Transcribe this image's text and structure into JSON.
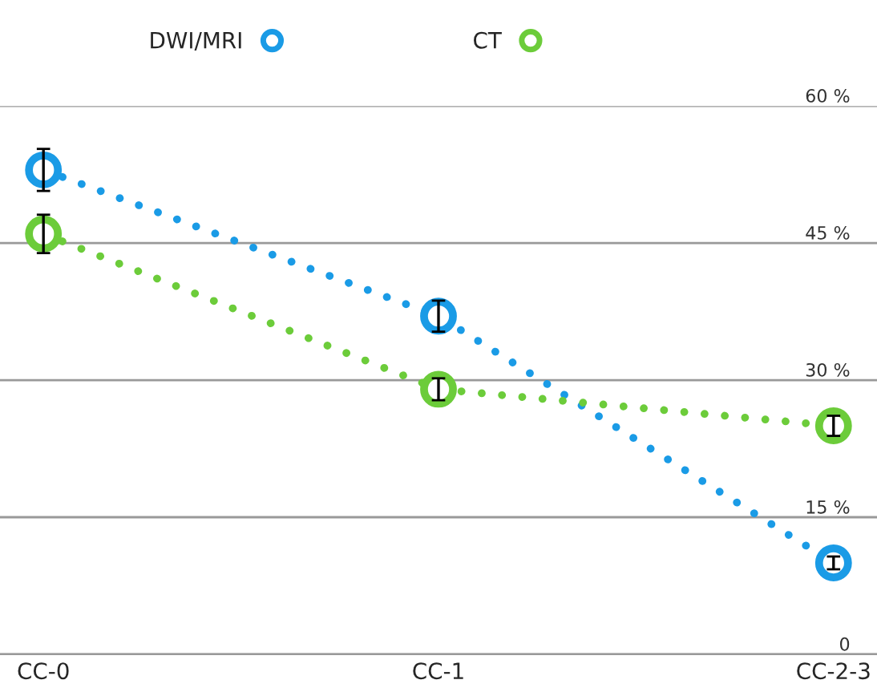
{
  "chart_data": {
    "type": "line",
    "categories": [
      "CC-0",
      "CC-1",
      "CC-2-3"
    ],
    "series": [
      {
        "name": "DWI/MRI",
        "color": "#1a9be6",
        "values": [
          53,
          37,
          10
        ],
        "errors": [
          2.3,
          1.7,
          0.7
        ]
      },
      {
        "name": "CT",
        "color": "#6ccc3a",
        "values": [
          46,
          29,
          25
        ],
        "errors": [
          2.1,
          1.2,
          1.1
        ]
      }
    ],
    "ylim": [
      0,
      60
    ],
    "yticks": [
      {
        "value": 0,
        "label": "0"
      },
      {
        "value": 15,
        "label": "15 %"
      },
      {
        "value": 30,
        "label": "30 %"
      },
      {
        "value": 45,
        "label": "45 %"
      },
      {
        "value": 60,
        "label": "60 %"
      }
    ],
    "grid": "y",
    "legend": "top",
    "marker": "circle",
    "line_style": "dotted"
  }
}
